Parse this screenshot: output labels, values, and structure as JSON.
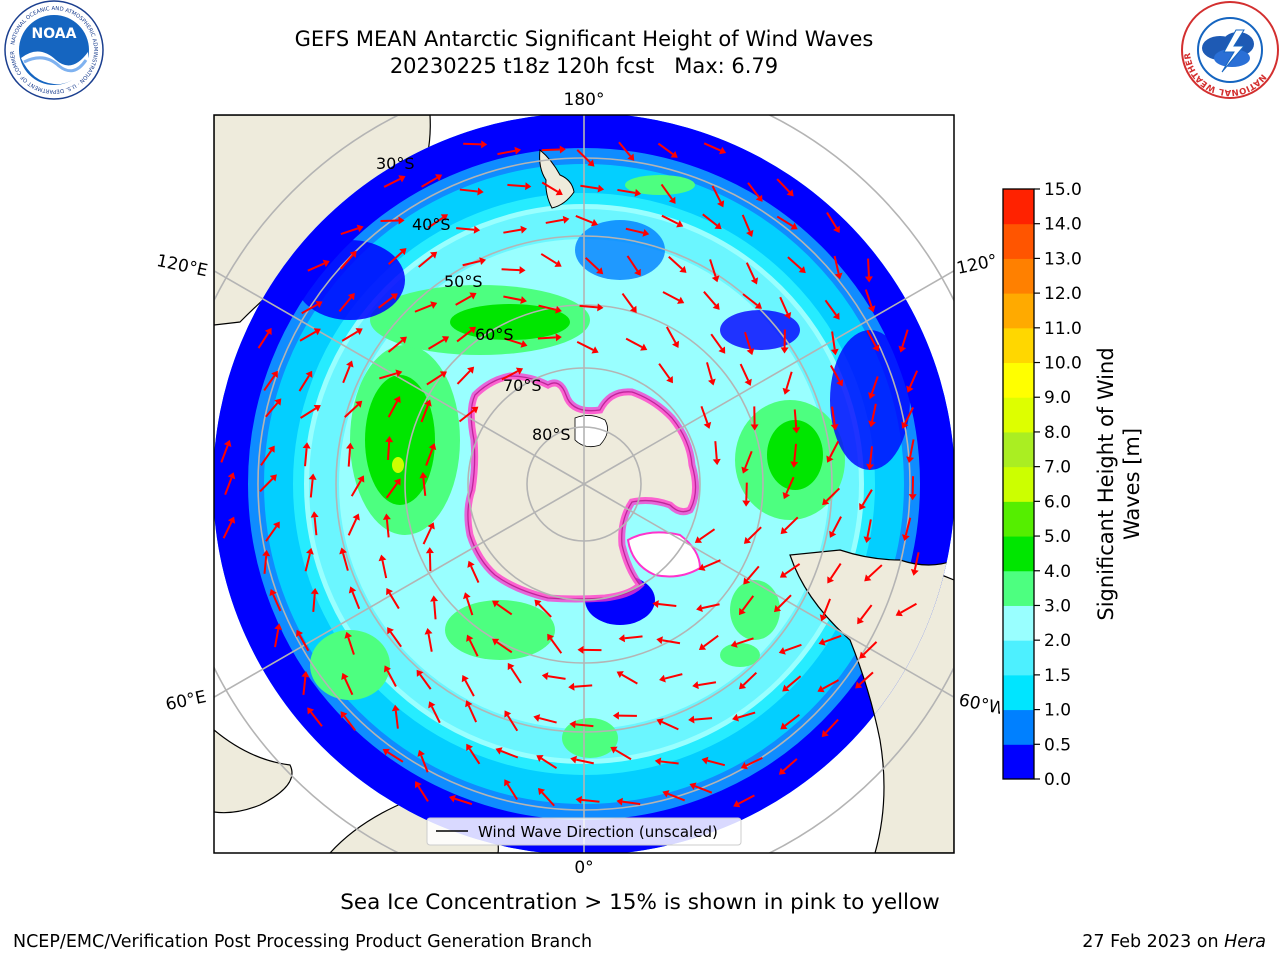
{
  "title": {
    "line1": "GEFS MEAN Antarctic Significant Height of Wind Waves",
    "line2": "20230225 t18z 120h fcst   Max: 6.79"
  },
  "logos": {
    "noaa": {
      "text": "NOAA",
      "ring_text": "NATIONAL OCEANIC AND ATMOSPHERIC ADMINISTRATION · U.S. DEPARTMENT OF COMMERCE"
    },
    "nws": {
      "ring_text": "NATIONAL WEATHER SERVICE"
    }
  },
  "map": {
    "projection": "south-polar-stereographic",
    "longitude_labels": {
      "top": "180°",
      "bottom": "0°",
      "left_upper": "120°E",
      "left_lower": "60°E",
      "right_upper": "120°",
      "right_lower": "60°W"
    },
    "latitude_labels": [
      "30°S",
      "40°S",
      "50°S",
      "60°S",
      "70°S",
      "80°S"
    ],
    "legend_label": "Wind Wave Direction (unscaled)",
    "colors": {
      "land": "#eeebdc",
      "graticule": "#b4b4b4",
      "arrows": "#ff0000",
      "sea_ice": "#ff33cc",
      "ice_shelf": "#ffffff"
    }
  },
  "colorbar": {
    "label_line1": "Significant Height of Wind",
    "label_line2": "Waves [m]",
    "ticks": [
      "15.0",
      "14.0",
      "13.0",
      "12.0",
      "11.0",
      "10.0",
      "9.0",
      "8.0",
      "7.0",
      "6.0",
      "5.0",
      "4.0",
      "3.0",
      "2.0",
      "1.5",
      "1.0",
      "0.5",
      "0.0"
    ],
    "bins": [
      {
        "from": 0.0,
        "to": 0.5,
        "color": "#0000ff"
      },
      {
        "from": 0.5,
        "to": 1.0,
        "color": "#0080ff"
      },
      {
        "from": 1.0,
        "to": 1.5,
        "color": "#00e5ff"
      },
      {
        "from": 1.5,
        "to": 2.0,
        "color": "#4df0ff"
      },
      {
        "from": 2.0,
        "to": 3.0,
        "color": "#99ffff"
      },
      {
        "from": 3.0,
        "to": 4.0,
        "color": "#4dff80"
      },
      {
        "from": 4.0,
        "to": 5.0,
        "color": "#00e600"
      },
      {
        "from": 5.0,
        "to": 6.0,
        "color": "#55ee00"
      },
      {
        "from": 6.0,
        "to": 7.0,
        "color": "#ccff00"
      },
      {
        "from": 7.0,
        "to": 8.0,
        "color": "#aaee22"
      },
      {
        "from": 8.0,
        "to": 9.0,
        "color": "#ddff00"
      },
      {
        "from": 9.0,
        "to": 10.0,
        "color": "#ffff00"
      },
      {
        "from": 10.0,
        "to": 11.0,
        "color": "#ffd700"
      },
      {
        "from": 11.0,
        "to": 12.0,
        "color": "#ffaa00"
      },
      {
        "from": 12.0,
        "to": 13.0,
        "color": "#ff8000"
      },
      {
        "from": 13.0,
        "to": 14.0,
        "color": "#ff5500"
      },
      {
        "from": 14.0,
        "to": 15.0,
        "color": "#ff2200"
      }
    ]
  },
  "subcaption": "Sea Ice Concentration > 15% is shown in pink to yellow",
  "footer": {
    "left": "NCEP/EMC/Verification Post Processing Product Generation Branch",
    "right_prefix": "27 Feb 2023 on ",
    "right_host": "Hera"
  }
}
